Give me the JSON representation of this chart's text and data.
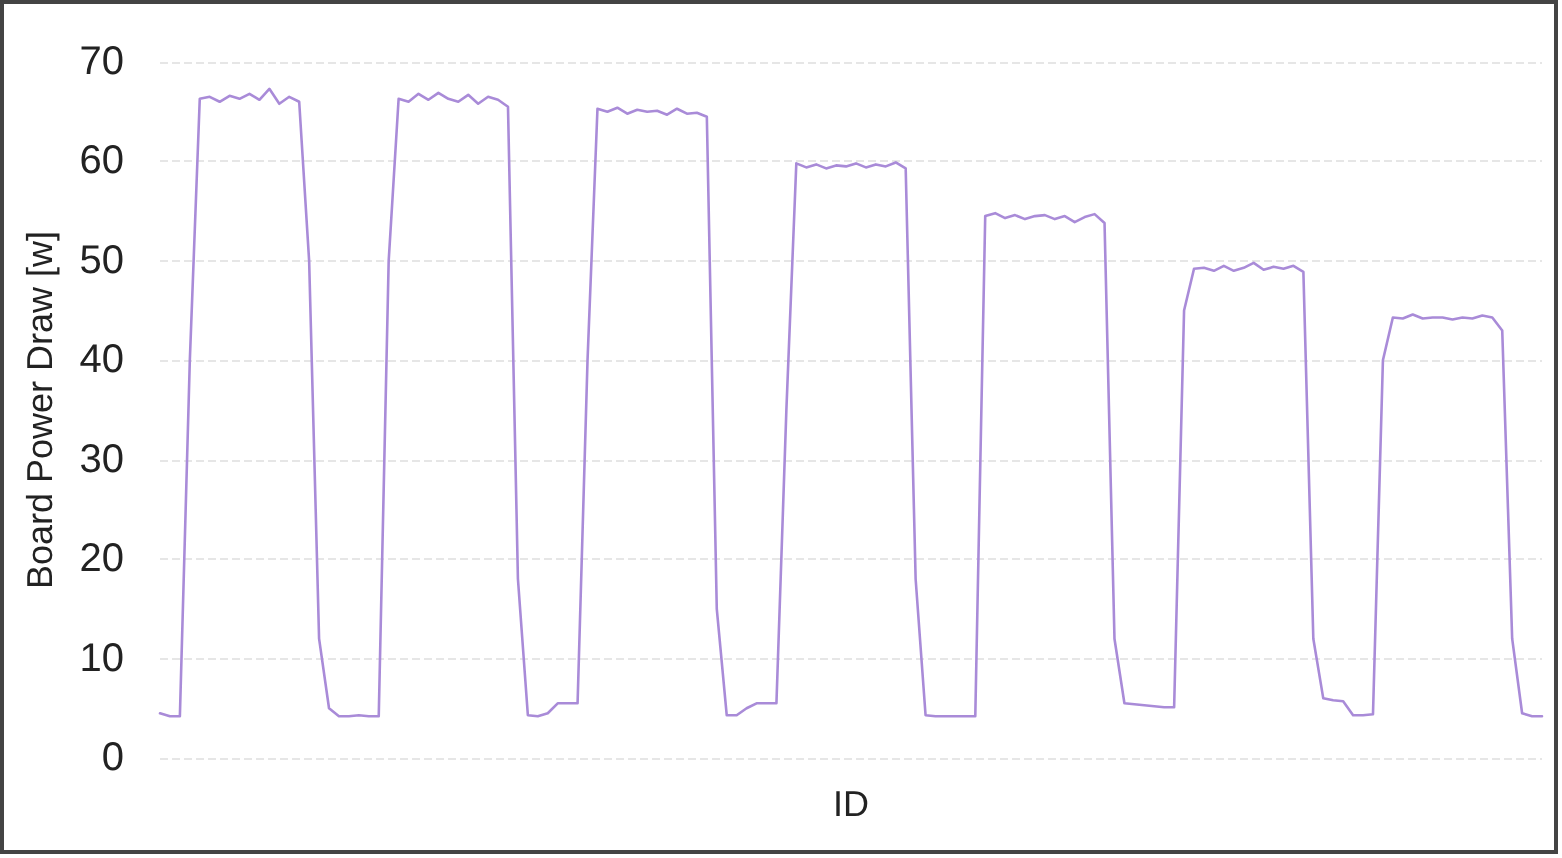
{
  "chart_data": {
    "type": "line",
    "xlabel": "ID",
    "ylabel": "Board Power Draw [w]",
    "categories": [
      null,
      null,
      null,
      null,
      null,
      null,
      null,
      null,
      null,
      null,
      null,
      null,
      null,
      null,
      null,
      null,
      null,
      null,
      null,
      null,
      null,
      null,
      null,
      null,
      null,
      null,
      null,
      null,
      null,
      null,
      null,
      null,
      null,
      null,
      null,
      null,
      null,
      null,
      null,
      null,
      null,
      null,
      null,
      null,
      null,
      null,
      null,
      null,
      null,
      null,
      null,
      null,
      null,
      null,
      null,
      null,
      null,
      null,
      null,
      null,
      null,
      null,
      null,
      null,
      null,
      null,
      null,
      null,
      null,
      null,
      null,
      null,
      null,
      null,
      null,
      null,
      null,
      null,
      null,
      null,
      null,
      null,
      null,
      null,
      null,
      null,
      null,
      null,
      null,
      null,
      null,
      null,
      null,
      null,
      null,
      null,
      null,
      null,
      null,
      null,
      null,
      null,
      null,
      null,
      null,
      null,
      null,
      null,
      null,
      null,
      null,
      null,
      null,
      null,
      null,
      null,
      null,
      null,
      null,
      null,
      null,
      null,
      null,
      null,
      null,
      null,
      null,
      null,
      null,
      null,
      null,
      null,
      null,
      null,
      null,
      null,
      null,
      null,
      null,
      null
    ],
    "series": [
      {
        "color": "#a98bd8",
        "values": [
          4.5,
          4.2,
          4.2,
          40,
          66.3,
          66.5,
          66.0,
          66.6,
          66.3,
          66.8,
          66.2,
          67.3,
          65.8,
          66.5,
          66.0,
          50,
          12,
          5,
          4.2,
          4.2,
          4.3,
          4.2,
          4.2,
          50,
          66.3,
          66.0,
          66.8,
          66.2,
          66.9,
          66.3,
          66.0,
          66.7,
          65.8,
          66.5,
          66.2,
          65.5,
          18,
          4.3,
          4.2,
          4.5,
          5.5,
          5.5,
          5.5,
          40,
          65.3,
          65.0,
          65.4,
          64.8,
          65.2,
          65.0,
          65.1,
          64.7,
          65.3,
          64.8,
          64.9,
          64.5,
          15,
          4.3,
          4.3,
          5.0,
          5.5,
          5.5,
          5.5,
          35,
          59.8,
          59.4,
          59.7,
          59.3,
          59.6,
          59.5,
          59.8,
          59.4,
          59.7,
          59.5,
          59.9,
          59.3,
          18,
          4.3,
          4.2,
          4.2,
          4.2,
          4.2,
          4.2,
          54.5,
          54.8,
          54.3,
          54.6,
          54.2,
          54.5,
          54.6,
          54.2,
          54.5,
          53.9,
          54.4,
          54.7,
          53.8,
          12,
          5.5,
          5.4,
          5.3,
          5.2,
          5.1,
          5.1,
          45,
          49.2,
          49.3,
          49.0,
          49.5,
          49.0,
          49.3,
          49.8,
          49.1,
          49.4,
          49.2,
          49.5,
          48.9,
          12,
          6,
          5.8,
          5.7,
          4.3,
          4.3,
          4.4,
          40,
          44.3,
          44.2,
          44.6,
          44.2,
          44.3,
          44.3,
          44.1,
          44.3,
          44.2,
          44.5,
          44.3,
          43,
          12,
          4.5,
          4.2,
          4.2
        ]
      }
    ],
    "ylim": [
      0,
      70
    ],
    "yticks": [
      0,
      10,
      20,
      30,
      40,
      50,
      60,
      70
    ],
    "grid": "y",
    "marker": "none",
    "line_style": "solid"
  }
}
